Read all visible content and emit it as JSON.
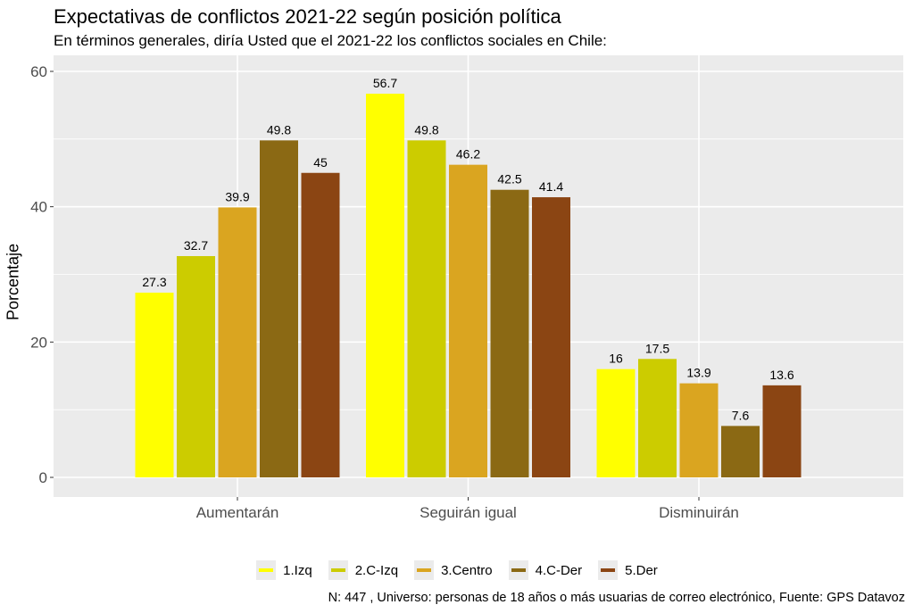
{
  "title": "Expectativas de conflictos 2021-22 según posición política",
  "subtitle": "En términos generales, diría Usted que el 2021-22 los conflictos sociales en Chile:",
  "caption": "N: 447 , Universo: personas de 18 años o más usuarias de correo electrónico, Fuente: GPS Datavoz",
  "chart_data": {
    "type": "bar",
    "title": "Expectativas de conflictos 2021-22 según posición política",
    "subtitle": "En términos generales, diría Usted que el 2021-22 los conflictos sociales en Chile:",
    "xlabel": "",
    "ylabel": "Porcentaje",
    "categories": [
      "Aumentarán",
      "Seguirán igual",
      "Disminuirán"
    ],
    "series": [
      {
        "name": "1.Izq",
        "color": "#ffff00",
        "values": [
          27.3,
          56.7,
          16
        ]
      },
      {
        "name": "2.C-Izq",
        "color": "#cccc00",
        "values": [
          32.7,
          49.8,
          17.5
        ]
      },
      {
        "name": "3.Centro",
        "color": "#daa520",
        "values": [
          39.9,
          46.2,
          13.9
        ]
      },
      {
        "name": "4.C-Der",
        "color": "#8b6914",
        "values": [
          49.8,
          42.5,
          7.6
        ]
      },
      {
        "name": "5.Der",
        "color": "#8b4513",
        "values": [
          45,
          41.4,
          13.6
        ]
      }
    ],
    "value_labels": [
      [
        "27.3",
        "56.7",
        "16"
      ],
      [
        "32.7",
        "49.8",
        "17.5"
      ],
      [
        "39.9",
        "46.2",
        "13.9"
      ],
      [
        "49.8",
        "42.5",
        "7.6"
      ],
      [
        "45",
        "41.4",
        "13.6"
      ]
    ],
    "yticks": [
      0,
      20,
      40,
      60
    ],
    "ylim": [
      0,
      62
    ],
    "grid": true,
    "legend_position": "bottom"
  }
}
